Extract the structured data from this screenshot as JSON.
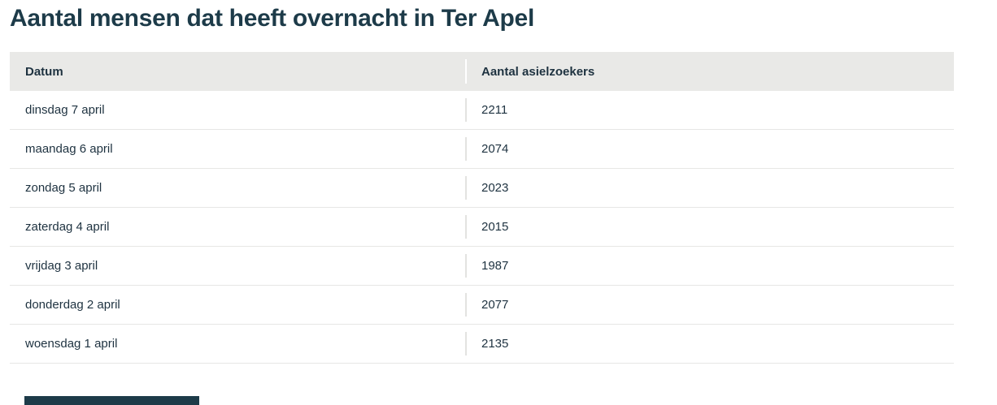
{
  "title": "Aantal mensen dat heeft overnacht in Ter Apel",
  "chart_data": {
    "type": "table",
    "title": "Aantal mensen dat heeft overnacht in Ter Apel",
    "columns": [
      "Datum",
      "Aantal asielzoekers"
    ],
    "categories": [
      "dinsdag 7 april",
      "maandag 6 april",
      "zondag 5 april",
      "zaterdag 4 april",
      "vrijdag 3 april",
      "donderdag 2 april",
      "woensdag 1 april"
    ],
    "values": [
      2211,
      2074,
      2023,
      2015,
      1987,
      2077,
      2135
    ]
  },
  "colors": {
    "title_text": "#1d3b49",
    "cell_text": "#1e3240",
    "header_background": "#e9e9e7",
    "row_divider": "#e7e7e5",
    "column_divider": "#e3e3e1",
    "bottom_bar": "#1d3b49"
  }
}
